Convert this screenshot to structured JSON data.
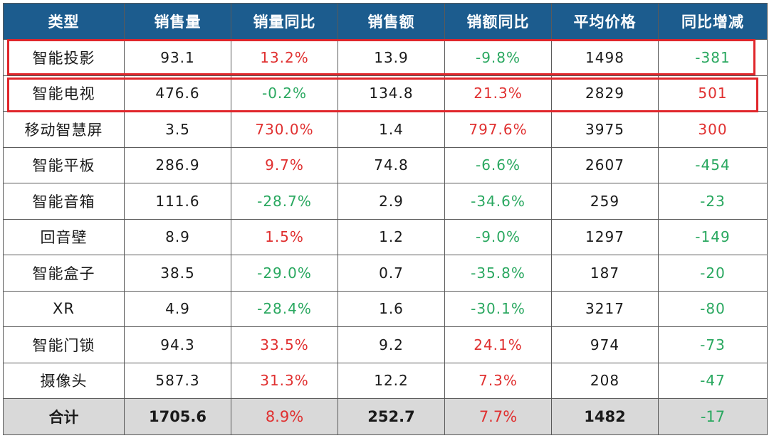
{
  "colors": {
    "header_bg": "#1c5c8e",
    "positive": "#e03030",
    "negative": "#2aa860",
    "total_bg": "#d9d9d9",
    "highlight": "#e0262b"
  },
  "table": {
    "headers": [
      "类型",
      "销售量",
      "销量同比",
      "销售额",
      "销额同比",
      "平均价格",
      "同比增减"
    ],
    "rows": [
      [
        "智能投影",
        "93.1",
        "13.2%",
        "13.9",
        "-9.8%",
        "1498",
        "-381"
      ],
      [
        "智能电视",
        "476.6",
        "-0.2%",
        "134.8",
        "21.3%",
        "2829",
        "501"
      ],
      [
        "移动智慧屏",
        "3.5",
        "730.0%",
        "1.4",
        "797.6%",
        "3975",
        "300"
      ],
      [
        "智能平板",
        "286.9",
        "9.7%",
        "74.8",
        "-6.6%",
        "2607",
        "-454"
      ],
      [
        "智能音箱",
        "111.6",
        "-28.7%",
        "2.9",
        "-34.6%",
        "259",
        "-23"
      ],
      [
        "回音壁",
        "8.9",
        "1.5%",
        "1.2",
        "-9.0%",
        "1297",
        "-149"
      ],
      [
        "智能盒子",
        "38.5",
        "-29.0%",
        "0.7",
        "-35.8%",
        "187",
        "-20"
      ],
      [
        "XR",
        "4.9",
        "-28.4%",
        "1.6",
        "-30.1%",
        "3217",
        "-80"
      ],
      [
        "智能门锁",
        "94.3",
        "33.5%",
        "9.2",
        "24.1%",
        "974",
        "-73"
      ],
      [
        "摄像头",
        "587.3",
        "31.3%",
        "12.2",
        "7.3%",
        "208",
        "-47"
      ]
    ],
    "total": [
      "合计",
      "1705.6",
      "8.9%",
      "252.7",
      "7.7%",
      "1482",
      "-17"
    ],
    "highlighted_rows": [
      "智能投影",
      "智能电视"
    ]
  }
}
